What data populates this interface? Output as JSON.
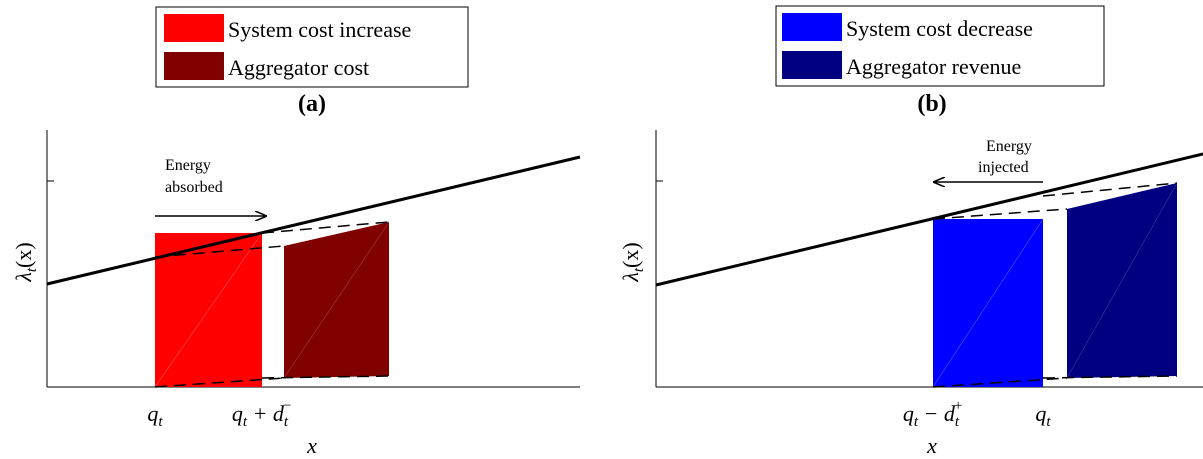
{
  "panel_a": {
    "label": "(a)",
    "legend": [
      {
        "label": "System cost increase",
        "color": "#ff0000"
      },
      {
        "label": "Aggregator cost",
        "color": "#800000"
      }
    ],
    "annotation": {
      "line1": "Energy",
      "line2": "absorbed"
    },
    "ylabel": {
      "base": "λ",
      "sub": "t",
      "arg": "(x)"
    },
    "xlabel": "x",
    "xticks": [
      {
        "base": "q",
        "sub": "t",
        "rest": ""
      },
      {
        "base": "q",
        "sub": "t",
        "rest": " + d",
        "sub2": "t",
        "sup2": "−"
      }
    ]
  },
  "panel_b": {
    "label": "(b)",
    "legend": [
      {
        "label": "System cost decrease",
        "color": "#0000ff"
      },
      {
        "label": "Aggregator revenue",
        "color": "#000080"
      }
    ],
    "annotation": {
      "line1": "Energy",
      "line2": "injected"
    },
    "ylabel": {
      "base": "λ",
      "sub": "t",
      "arg": "(x)"
    },
    "xlabel": "x",
    "xticks": [
      {
        "base": "q",
        "sub": "t",
        "rest": " − d",
        "sub2": "t",
        "sup2": "+"
      },
      {
        "base": "q",
        "sub": "t",
        "rest": ""
      }
    ]
  }
}
